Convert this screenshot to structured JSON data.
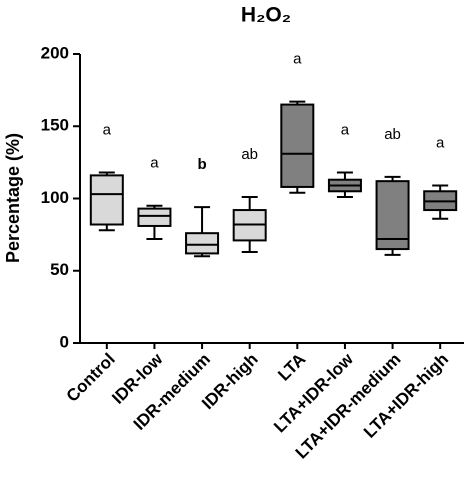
{
  "chart_data": {
    "type": "box",
    "title": "H₂O₂",
    "y_label": "Percentage (%)",
    "categories": [
      "Control",
      "IDR-low",
      "IDR-medium",
      "IDR-high",
      "LTA",
      "LTA+IDR-low",
      "LTA+IDR-medium",
      "LTA+IDR-high"
    ],
    "colors": [
      "#d9d9d9",
      "#d9d9d9",
      "#d9d9d9",
      "#d9d9d9",
      "#808080",
      "#808080",
      "#808080",
      "#808080"
    ],
    "boxes": [
      {
        "min": 78,
        "q1": 82,
        "median": 103,
        "q3": 116,
        "max": 118
      },
      {
        "min": 72,
        "q1": 81,
        "median": 88,
        "q3": 93,
        "max": 95
      },
      {
        "min": 60,
        "q1": 62,
        "median": 68,
        "q3": 76,
        "max": 94
      },
      {
        "min": 63,
        "q1": 71,
        "median": 82,
        "q3": 92,
        "max": 101
      },
      {
        "min": 104,
        "q1": 108,
        "median": 131,
        "q3": 165,
        "max": 167
      },
      {
        "min": 101,
        "q1": 105,
        "median": 109,
        "q3": 113,
        "max": 118
      },
      {
        "min": 61,
        "q1": 65,
        "median": 72,
        "q3": 112,
        "max": 115
      },
      {
        "min": 86,
        "q1": 92,
        "median": 98,
        "q3": 105,
        "max": 109
      }
    ],
    "annotations": [
      {
        "text": "a",
        "bold": false
      },
      {
        "text": "a",
        "bold": false
      },
      {
        "text": "b",
        "bold": true
      },
      {
        "text": "ab",
        "bold": false
      },
      {
        "text": "a",
        "bold": false
      },
      {
        "text": "a",
        "bold": false
      },
      {
        "text": "ab",
        "bold": false
      },
      {
        "text": "a",
        "bold": false
      }
    ],
    "ylim": [
      0,
      200
    ],
    "yticks": [
      0,
      50,
      100,
      150,
      200
    ]
  }
}
